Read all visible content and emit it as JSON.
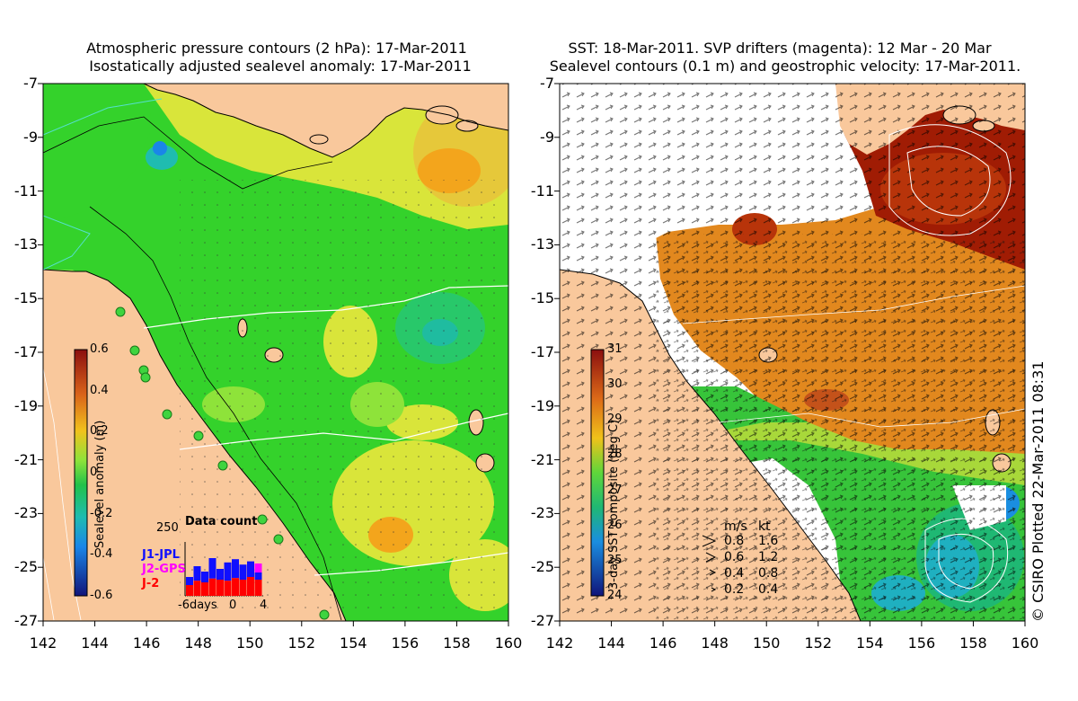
{
  "left_panel": {
    "title_line1": "Atmospheric pressure contours (2 hPa): 17-Mar-2011",
    "title_line2": "Isostatically adjusted sealevel anomaly: 17-Mar-2011",
    "colorbar": {
      "label": "Sealevel anomaly (m)",
      "ticks": [
        "0.6",
        "0.4",
        "0.2",
        "0",
        "-0.2",
        "-0.4",
        "-0.6"
      ]
    },
    "data_count": {
      "title": "Data count",
      "max_label": "250",
      "series": [
        {
          "name": "J1-JPL",
          "color": "#1010ff"
        },
        {
          "name": "J2-GPS",
          "color": "#ff00ff"
        },
        {
          "name": "J-2",
          "color": "#ff0000"
        }
      ],
      "x_labels": [
        "-6days",
        "0",
        "4"
      ],
      "bars_total": [
        0.35,
        0.55,
        0.45,
        0.7,
        0.5,
        0.62,
        0.68,
        0.58,
        0.64,
        0.6
      ],
      "bars_red": [
        0.2,
        0.28,
        0.25,
        0.32,
        0.3,
        0.28,
        0.33,
        0.3,
        0.35,
        0.3
      ]
    }
  },
  "right_panel": {
    "title_line1": "SST: 18-Mar-2011. SVP drifters (magenta): 12 Mar - 20 Mar",
    "title_line2": "Sealevel contours (0.1 m) and geostrophic velocity: 17-Mar-2011.",
    "colorbar": {
      "label": "3-day SST composite (deg C)",
      "ticks": [
        "31",
        "30",
        "29",
        "28",
        "27",
        "26",
        "25",
        "24"
      ]
    },
    "velocity_legend": {
      "header_ms": "m/s",
      "header_kt": "kt",
      "rows": [
        {
          "ms": "0.8",
          "kt": "1.6"
        },
        {
          "ms": "0.6",
          "kt": "1.2"
        },
        {
          "ms": "0.4",
          "kt": "0.8"
        },
        {
          "ms": "0.2",
          "kt": "0.4"
        }
      ]
    }
  },
  "axes": {
    "y_ticks": [
      "-7",
      "-9",
      "-11",
      "-13",
      "-15",
      "-17",
      "-19",
      "-21",
      "-23",
      "-25",
      "-27"
    ],
    "x_ticks": [
      "142",
      "144",
      "146",
      "148",
      "150",
      "152",
      "154",
      "156",
      "158",
      "160"
    ]
  },
  "credit": "© CSIRO Plotted 22-Mar-2011 08:31",
  "colors": {
    "land": "#f9c89c",
    "sla_green": "#34d22b",
    "sla_light_green": "#6ee83a",
    "sla_yellow": "#d9e53a",
    "sla_orange": "#f3a51c",
    "sst_dark_red": "#a01c04",
    "sst_orange": "#e2881e",
    "sst_green": "#37c43a",
    "cloud": "#ffffff"
  }
}
